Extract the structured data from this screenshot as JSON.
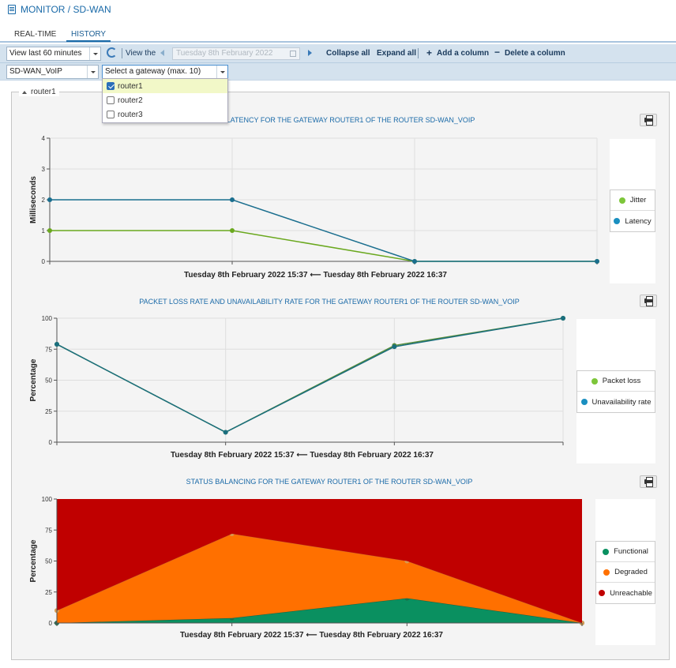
{
  "breadcrumb": "MONITOR / SD-WAN",
  "tabs": [
    {
      "label": "REAL-TIME",
      "active": false
    },
    {
      "label": "HISTORY",
      "active": true
    }
  ],
  "toolbar": {
    "period_select": "View last 60 minutes",
    "view_the_label": "View the",
    "date_value": "Tuesday 8th February 2022",
    "collapse_all": "Collapse all",
    "expand_all": "Expand all",
    "add_column": "Add a column",
    "delete_column": "Delete a column"
  },
  "filters": {
    "router_select": "SD-WAN_VoIP",
    "gateway_select": "Select a gateway (max. 10)",
    "gateway_options": [
      {
        "label": "router1",
        "checked": true
      },
      {
        "label": "router2",
        "checked": false
      },
      {
        "label": "router3",
        "checked": false
      }
    ]
  },
  "panel": {
    "legend": "router1"
  },
  "charts": [
    {
      "title": "JITTER AND LATENCY FOR THE GATEWAY ROUTER1 OF THE ROUTER SD-WAN_VOIP",
      "ylabel": "Milliseconds",
      "xlabel": "Tuesday 8th February 2022 15:37 ⟵ Tuesday 8th February 2022 16:37",
      "legend": [
        {
          "name": "Jitter",
          "color": "#6aa81e"
        },
        {
          "name": "Latency",
          "color": "#1a83a8"
        }
      ]
    },
    {
      "title": "PACKET LOSS RATE AND UNAVAILABILITY RATE FOR THE GATEWAY ROUTER1 OF THE ROUTER SD-WAN_VOIP",
      "ylabel": "Percentage",
      "xlabel": "Tuesday 8th February 2022 15:37 ⟵ Tuesday 8th February 2022 16:37",
      "legend": [
        {
          "name": "Packet loss",
          "color": "#7dc63a"
        },
        {
          "name": "Unavailability rate",
          "color": "#1a8fc0"
        }
      ]
    },
    {
      "title": "STATUS BALANCING FOR THE GATEWAY ROUTER1 OF THE ROUTER SD-WAN_VOIP",
      "ylabel": "Percentage",
      "xlabel": "Tuesday 8th February 2022 15:37 ⟵ Tuesday 8th February 2022 16:37",
      "legend": [
        {
          "name": "Functional",
          "color": "#0a9060"
        },
        {
          "name": "Degraded",
          "color": "#ff7000"
        },
        {
          "name": "Unreachable",
          "color": "#c00000"
        }
      ]
    }
  ],
  "chart_data": [
    {
      "type": "line",
      "title": "JITTER AND LATENCY FOR THE GATEWAY ROUTER1 OF THE ROUTER SD-WAN_VOIP",
      "ylabel": "Milliseconds",
      "xlabel": "Tuesday 8th February 2022 15:37 ⟵ Tuesday 8th February 2022 16:37",
      "ylim": [
        0,
        4
      ],
      "yticks": [
        0,
        1,
        2,
        3,
        4
      ],
      "x": [
        0,
        1,
        2,
        3
      ],
      "series": [
        {
          "name": "Jitter",
          "color": "#6aa81e",
          "values": [
            1,
            1,
            0,
            0
          ]
        },
        {
          "name": "Latency",
          "color": "#1a6e8e",
          "values": [
            2,
            2,
            0,
            0
          ]
        }
      ]
    },
    {
      "type": "line",
      "title": "PACKET LOSS RATE AND UNAVAILABILITY RATE FOR THE GATEWAY ROUTER1 OF THE ROUTER SD-WAN_VOIP",
      "ylabel": "Percentage",
      "xlabel": "Tuesday 8th February 2022 15:37 ⟵ Tuesday 8th February 2022 16:37",
      "ylim": [
        0,
        100
      ],
      "yticks": [
        0,
        25,
        50,
        75,
        100
      ],
      "x": [
        0,
        1,
        2,
        3
      ],
      "series": [
        {
          "name": "Packet loss",
          "color": "#5a8e3a",
          "values": [
            79,
            8,
            78,
            100
          ]
        },
        {
          "name": "Unavailability rate",
          "color": "#1a6e7e",
          "values": [
            79,
            8,
            77,
            100
          ]
        }
      ]
    },
    {
      "type": "area",
      "title": "STATUS BALANCING FOR THE GATEWAY ROUTER1 OF THE ROUTER SD-WAN_VOIP",
      "ylabel": "Percentage",
      "xlabel": "Tuesday 8th February 2022 15:37 ⟵ Tuesday 8th February 2022 16:37",
      "ylim": [
        0,
        100
      ],
      "yticks": [
        0,
        25,
        50,
        75,
        100
      ],
      "stacked": true,
      "x": [
        0,
        1,
        2,
        3
      ],
      "series": [
        {
          "name": "Functional",
          "color": "#0a9060",
          "values": [
            0,
            4,
            20,
            0
          ]
        },
        {
          "name": "Degraded",
          "color": "#ff7000",
          "values": [
            10,
            68,
            30,
            0
          ]
        },
        {
          "name": "Unreachable",
          "color": "#c00000",
          "values": [
            90,
            28,
            50,
            100
          ]
        }
      ]
    }
  ]
}
